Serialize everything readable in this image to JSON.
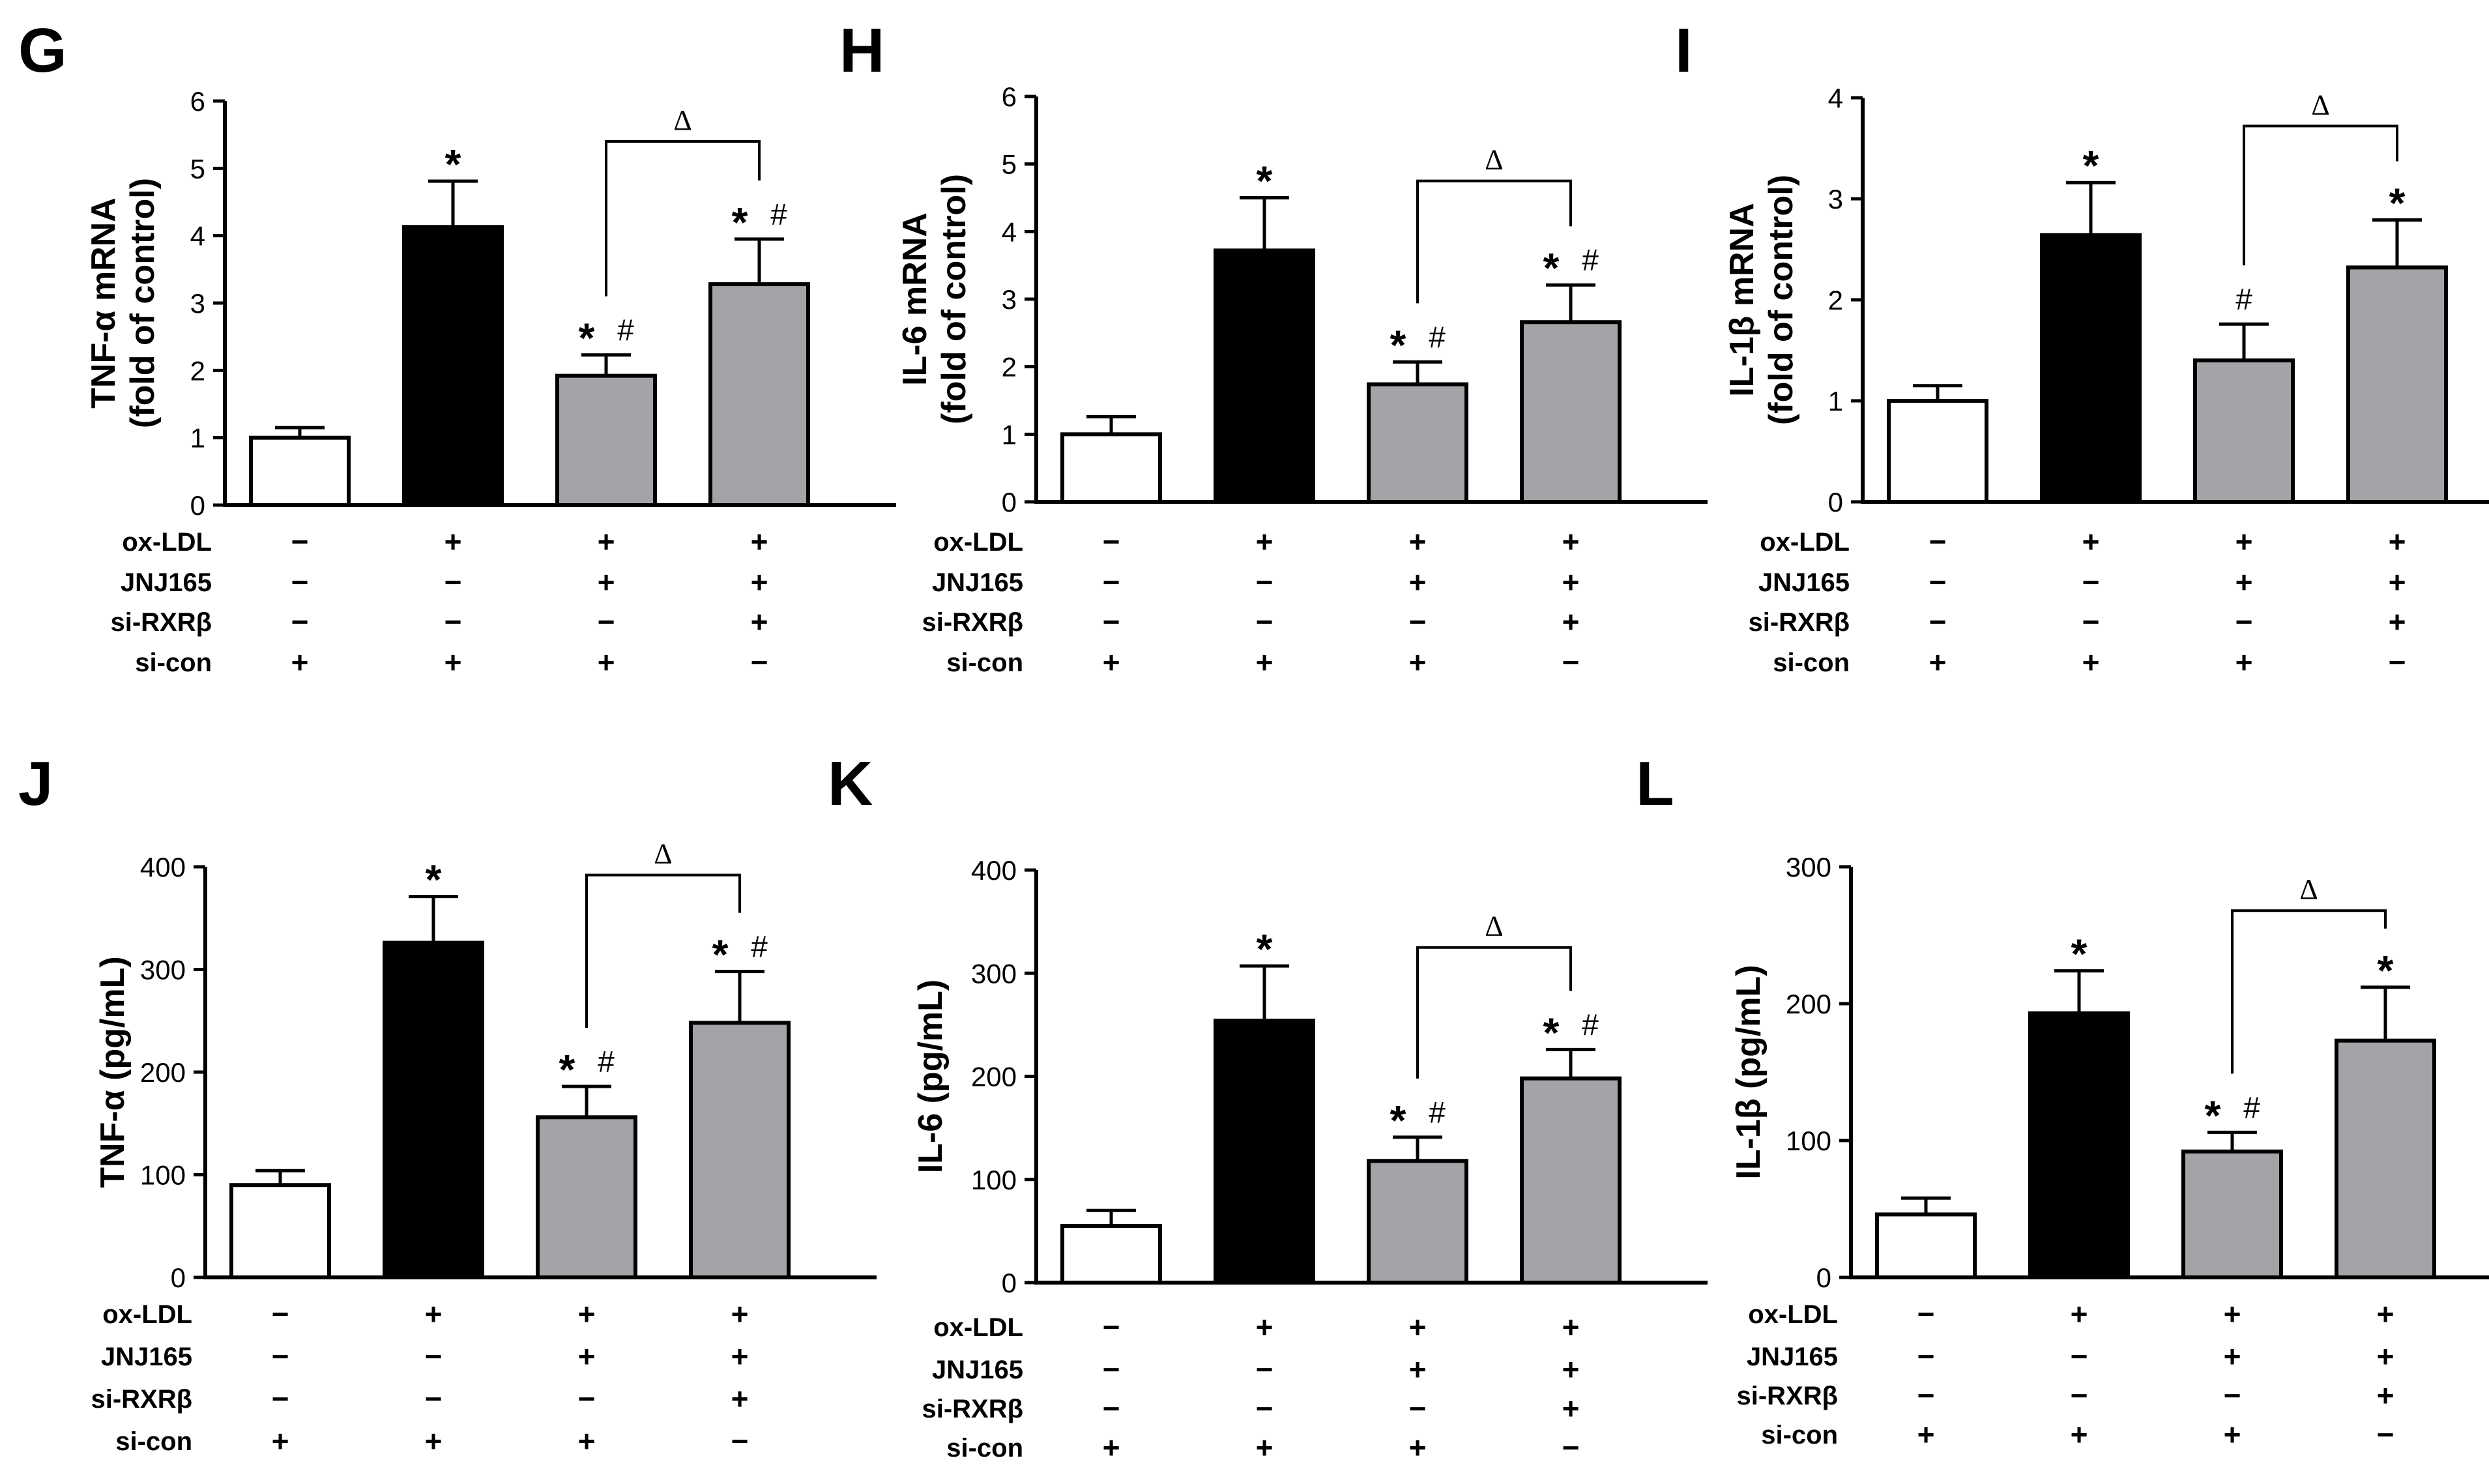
{
  "figure": {
    "conditions": [
      "ox-LDL",
      "JNJ165",
      "si-RXRβ",
      "si-con"
    ],
    "condition_signs": [
      [
        "−",
        "−",
        "−",
        "+"
      ],
      [
        "+",
        "−",
        "−",
        "+"
      ],
      [
        "+",
        "+",
        "−",
        "+"
      ],
      [
        "+",
        "+",
        "+",
        "−"
      ]
    ],
    "bar_colors": [
      "#ffffff",
      "#000000",
      "#a3a3a8",
      "#a3a3a8"
    ],
    "delta_symbol": "Δ"
  },
  "chart_data": [
    {
      "type": "bar",
      "panel": "G",
      "ylabel_lines": [
        "TNF-α mRNA",
        "(fold of control)"
      ],
      "ylim": [
        0,
        6
      ],
      "yticks": [
        "0",
        "1",
        "2",
        "3",
        "4",
        "5",
        "6"
      ],
      "values": [
        1.0,
        4.13,
        1.92,
        3.28
      ],
      "errors": [
        0.15,
        0.68,
        0.31,
        0.67
      ],
      "annotations": [
        [],
        [
          "*"
        ],
        [
          "*",
          "#"
        ],
        [
          "*",
          "#"
        ]
      ],
      "bracket": {
        "from": 2,
        "to": 3,
        "label": "Δ",
        "y": 5.4
      }
    },
    {
      "type": "bar",
      "panel": "H",
      "ylabel_lines": [
        "IL-6 mRNA",
        "(fold of control)"
      ],
      "ylim": [
        0,
        6
      ],
      "yticks": [
        "0",
        "1",
        "2",
        "3",
        "4",
        "5",
        "6"
      ],
      "values": [
        1.0,
        3.72,
        1.74,
        2.66
      ],
      "errors": [
        0.26,
        0.78,
        0.33,
        0.55
      ],
      "annotations": [
        [],
        [
          "*"
        ],
        [
          "*",
          "#"
        ],
        [
          "*",
          "#"
        ]
      ],
      "bracket": {
        "from": 2,
        "to": 3,
        "label": "Δ",
        "y": 4.75
      }
    },
    {
      "type": "bar",
      "panel": "I",
      "ylabel_lines": [
        "IL-1β mRNA",
        "(fold of control)"
      ],
      "ylim": [
        0,
        4
      ],
      "yticks": [
        "0",
        "1",
        "2",
        "3",
        "4"
      ],
      "values": [
        1.0,
        2.64,
        1.4,
        2.32
      ],
      "errors": [
        0.15,
        0.52,
        0.36,
        0.47
      ],
      "annotations": [
        [],
        [
          "*"
        ],
        [
          "#"
        ],
        [
          "*"
        ]
      ],
      "bracket": {
        "from": 2,
        "to": 3,
        "label": "Δ",
        "y": 3.72
      }
    },
    {
      "type": "bar",
      "panel": "J",
      "ylabel_lines": [
        "TNF-α (pg/mL)"
      ],
      "ylim": [
        0,
        400
      ],
      "yticks": [
        "0",
        "100",
        "200",
        "300",
        "400"
      ],
      "values": [
        90,
        326,
        156,
        248
      ],
      "errors": [
        14,
        45,
        30,
        50
      ],
      "annotations": [
        [],
        [
          "*"
        ],
        [
          "*",
          "#"
        ],
        [
          "*",
          "#"
        ]
      ],
      "bracket": {
        "from": 2,
        "to": 3,
        "label": "Δ",
        "y": 392
      }
    },
    {
      "type": "bar",
      "panel": "K",
      "ylabel_lines": [
        "IL-6 (pg/mL)"
      ],
      "ylim": [
        0,
        400
      ],
      "yticks": [
        "0",
        "100",
        "200",
        "300",
        "400"
      ],
      "values": [
        55,
        254,
        118,
        198
      ],
      "errors": [
        15,
        53,
        23,
        28
      ],
      "annotations": [
        [],
        [
          "*"
        ],
        [
          "*",
          "#"
        ],
        [
          "*",
          "#"
        ]
      ],
      "bracket": {
        "from": 2,
        "to": 3,
        "label": "Δ",
        "y": 325
      }
    },
    {
      "type": "bar",
      "panel": "L",
      "ylabel_lines": [
        "IL-1β (pg/mL)"
      ],
      "ylim": [
        0,
        300
      ],
      "yticks": [
        "0",
        "100",
        "200",
        "300"
      ],
      "values": [
        46,
        193,
        92,
        173
      ],
      "errors": [
        12,
        31,
        14,
        39
      ],
      "annotations": [
        [],
        [
          "*"
        ],
        [
          "*",
          "#"
        ],
        [
          "*"
        ]
      ],
      "bracket": {
        "from": 2,
        "to": 3,
        "label": "Δ",
        "y": 268
      }
    }
  ]
}
